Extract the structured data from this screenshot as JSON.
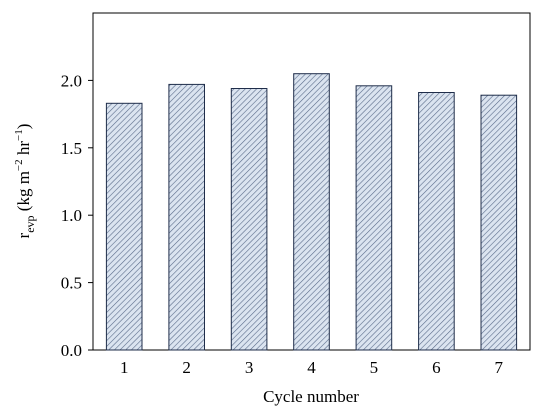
{
  "chart_data": {
    "type": "bar",
    "categories": [
      "1",
      "2",
      "3",
      "4",
      "5",
      "6",
      "7"
    ],
    "values": [
      1.83,
      1.97,
      1.94,
      2.05,
      1.96,
      1.91,
      1.89
    ],
    "xlabel": "Cycle number",
    "ylabel": {
      "base": "r",
      "subscript": "evp",
      "unit_open": " (kg m",
      "exp1": "−2",
      "unit_mid": " hr",
      "exp2": "−1",
      "unit_close": ")"
    },
    "ylim": [
      0,
      2.5
    ],
    "yticks": [
      "0.0",
      "0.5",
      "1.0",
      "1.5",
      "2.0"
    ],
    "ytick_values": [
      0,
      0.5,
      1.0,
      1.5,
      2.0
    ],
    "grid": false,
    "legend": "none",
    "colors": {
      "bar_fill": "#dbe4f0",
      "bar_hatch": "#5a6b8a",
      "bar_stroke": "#1f2d4a",
      "axis": "#000000"
    }
  }
}
